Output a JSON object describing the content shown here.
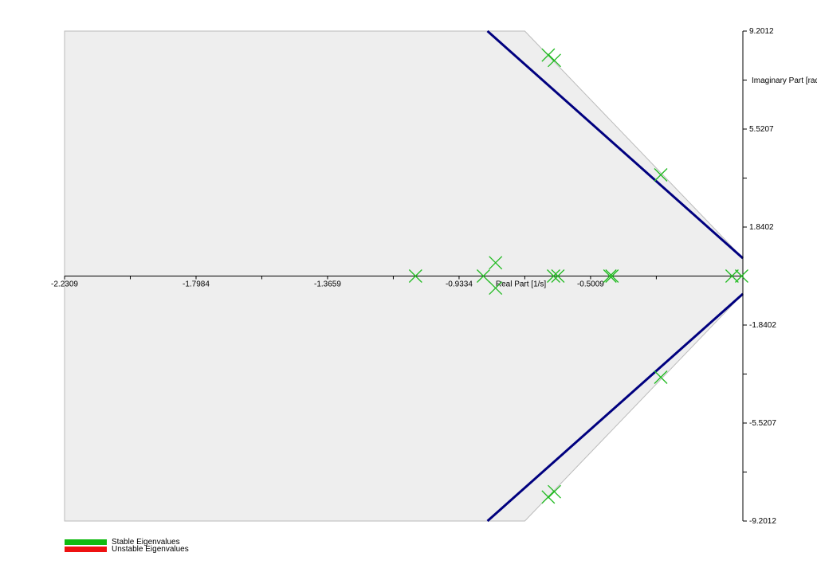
{
  "chart_data": {
    "type": "scatter",
    "xlabel": "Real Part [1/s]",
    "ylabel": "Imaginary Part [rad/s]",
    "x_ticks": [
      "-2.2309",
      "-1.7984",
      "-1.3659",
      "-0.9334",
      "-0.5009"
    ],
    "x_tick_values": [
      -2.2309,
      -1.7984,
      -1.3659,
      -0.9334,
      -0.5009
    ],
    "x_minor_ticks": [
      -2.0147,
      -1.5822,
      -1.1497,
      -0.7172,
      -0.2847
    ],
    "y_ticks": [
      "9.2012",
      "5.5207",
      "1.8402",
      "-1.8402",
      "-5.5207",
      "-9.2012"
    ],
    "y_tick_values": [
      9.2012,
      5.5207,
      1.8402,
      -1.8402,
      -5.5207,
      -9.2012
    ],
    "y_minor_ticks": [
      7.361,
      3.68,
      -3.68,
      -7.361
    ],
    "xlim": [
      -2.2309,
      0.0
    ],
    "ylim": [
      -9.2012,
      9.2012
    ],
    "stable_region": {
      "polygon": [
        [
          -2.2309,
          9.2012
        ],
        [
          -0.7172,
          9.2012
        ],
        [
          0.0,
          0.67
        ],
        [
          0.0,
          -0.67
        ],
        [
          -0.7172,
          -9.2012
        ],
        [
          -2.2309,
          -9.2012
        ]
      ],
      "fill": "#eeeeee",
      "stroke": "#bbbbbb"
    },
    "damping_lines": [
      {
        "from": [
          -0.84,
          9.2012
        ],
        "to": [
          0.0,
          0.67
        ]
      },
      {
        "from": [
          -0.84,
          -9.2012
        ],
        "to": [
          0.0,
          -0.67
        ]
      }
    ],
    "damping_line_color": "#00007f",
    "series": [
      {
        "name": "Stable Eigenvalues",
        "color": "#22bb22",
        "marker": "x",
        "points": [
          [
            -0.64,
            8.3
          ],
          [
            -0.62,
            8.1
          ],
          [
            -0.27,
            3.8
          ],
          [
            -0.27,
            -3.8
          ],
          [
            -0.64,
            -8.3
          ],
          [
            -0.62,
            -8.1
          ],
          [
            -1.0766,
            0.0
          ],
          [
            -0.8534,
            0.0
          ],
          [
            -0.8134,
            0.5
          ],
          [
            -0.8134,
            -0.45
          ],
          [
            -0.6226,
            0.0
          ],
          [
            -0.6084,
            0.0
          ],
          [
            -0.4372,
            0.0
          ],
          [
            -0.4304,
            0.0
          ],
          [
            -0.0357,
            0.0
          ],
          [
            -0.004,
            0.0
          ]
        ]
      }
    ],
    "legend": [
      {
        "label": "Stable Eigenvalues",
        "color": "#11bb11"
      },
      {
        "label": "Unstable Eigenvalues",
        "color": "#ee1111"
      }
    ],
    "legend_position": "bottom-left",
    "axis_color": "#000000"
  }
}
